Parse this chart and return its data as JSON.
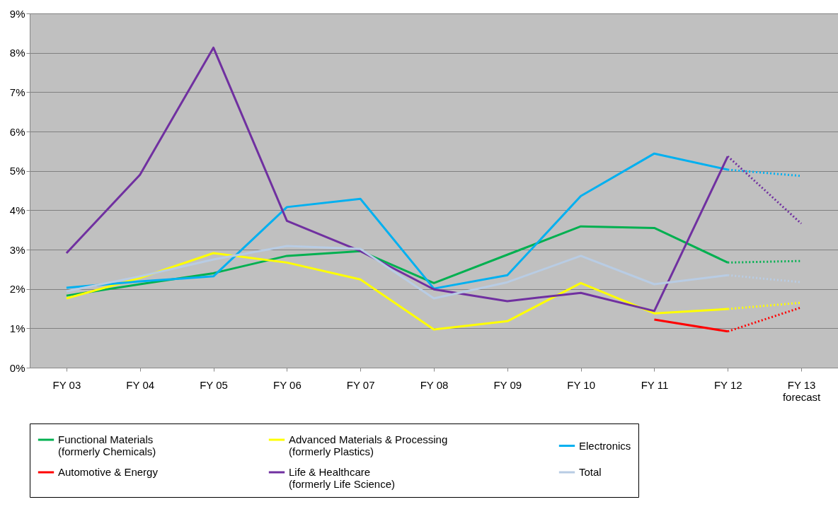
{
  "chart_data": {
    "type": "line",
    "categories": [
      "FY 03",
      "FY 04",
      "FY 05",
      "FY 06",
      "FY 07",
      "FY 08",
      "FY 09",
      "FY 10",
      "FY 11",
      "FY 12",
      "FY 13\nforecast"
    ],
    "ylim": [
      0,
      9
    ],
    "yticks": [
      {
        "value": 0,
        "label": "0%"
      },
      {
        "value": 1,
        "label": "1%"
      },
      {
        "value": 2,
        "label": "2%"
      },
      {
        "value": 3,
        "label": "3%"
      },
      {
        "value": 4,
        "label": "4%"
      },
      {
        "value": 5,
        "label": "5%"
      },
      {
        "value": 6,
        "label": "6%"
      },
      {
        "value": 7,
        "label": "7%"
      },
      {
        "value": 8,
        "label": "8%"
      },
      {
        "value": 9,
        "label": "9%"
      }
    ],
    "grid": "y",
    "legend": "bottom",
    "marker": "none",
    "series": [
      {
        "name": "Functional Materials\n(formerly Chemicals)",
        "color": "#00b050",
        "line_style": "solid",
        "values": [
          1.83,
          2.12,
          2.4,
          2.84,
          2.96,
          2.15,
          2.87,
          3.59,
          3.55,
          2.67,
          null
        ]
      },
      {
        "name": "Advanced Materials & Processing\n(formerly Plastics)",
        "color": "#ffff00",
        "line_style": "solid",
        "values": [
          1.76,
          2.28,
          2.91,
          2.67,
          2.24,
          0.97,
          1.18,
          2.15,
          1.38,
          1.49,
          null
        ]
      },
      {
        "name": "Electronics",
        "color": "#00b0f0",
        "line_style": "solid",
        "values": [
          2.03,
          2.19,
          2.32,
          4.08,
          4.29,
          2.01,
          2.35,
          4.36,
          5.44,
          5.03,
          null
        ]
      },
      {
        "name": "Automotive & Energy",
        "color": "#ff0000",
        "line_style": "solid",
        "values": [
          null,
          null,
          null,
          null,
          null,
          null,
          null,
          null,
          1.22,
          0.92,
          null
        ]
      },
      {
        "name": "Life & Healthcare\n(formerly Life Science)",
        "color": "#7030a0",
        "line_style": "solid",
        "values": [
          2.91,
          4.9,
          8.13,
          3.73,
          2.96,
          1.99,
          1.69,
          1.9,
          1.44,
          5.37,
          null
        ]
      },
      {
        "name": "Total",
        "color": "#b8cce4",
        "line_style": "solid",
        "values": [
          1.94,
          2.32,
          2.75,
          3.09,
          3.02,
          1.76,
          2.17,
          2.84,
          2.12,
          2.35,
          null
        ]
      },
      {
        "color": "#00b050",
        "line_style": "dotted",
        "values": [
          null,
          null,
          null,
          null,
          null,
          null,
          null,
          null,
          null,
          2.67,
          2.71
        ]
      },
      {
        "color": "#ffff00",
        "line_style": "dotted",
        "values": [
          null,
          null,
          null,
          null,
          null,
          null,
          null,
          null,
          null,
          1.49,
          1.65
        ]
      },
      {
        "color": "#00b0f0",
        "line_style": "dotted",
        "values": [
          null,
          null,
          null,
          null,
          null,
          null,
          null,
          null,
          null,
          5.03,
          4.87
        ]
      },
      {
        "color": "#ff0000",
        "line_style": "dotted",
        "values": [
          null,
          null,
          null,
          null,
          null,
          null,
          null,
          null,
          null,
          0.92,
          1.53
        ]
      },
      {
        "color": "#7030a0",
        "line_style": "dotted",
        "values": [
          null,
          null,
          null,
          null,
          null,
          null,
          null,
          null,
          null,
          5.37,
          3.66
        ]
      },
      {
        "color": "#b8cce4",
        "line_style": "dotted",
        "values": [
          null,
          null,
          null,
          null,
          null,
          null,
          null,
          null,
          null,
          2.35,
          2.17
        ]
      }
    ]
  }
}
